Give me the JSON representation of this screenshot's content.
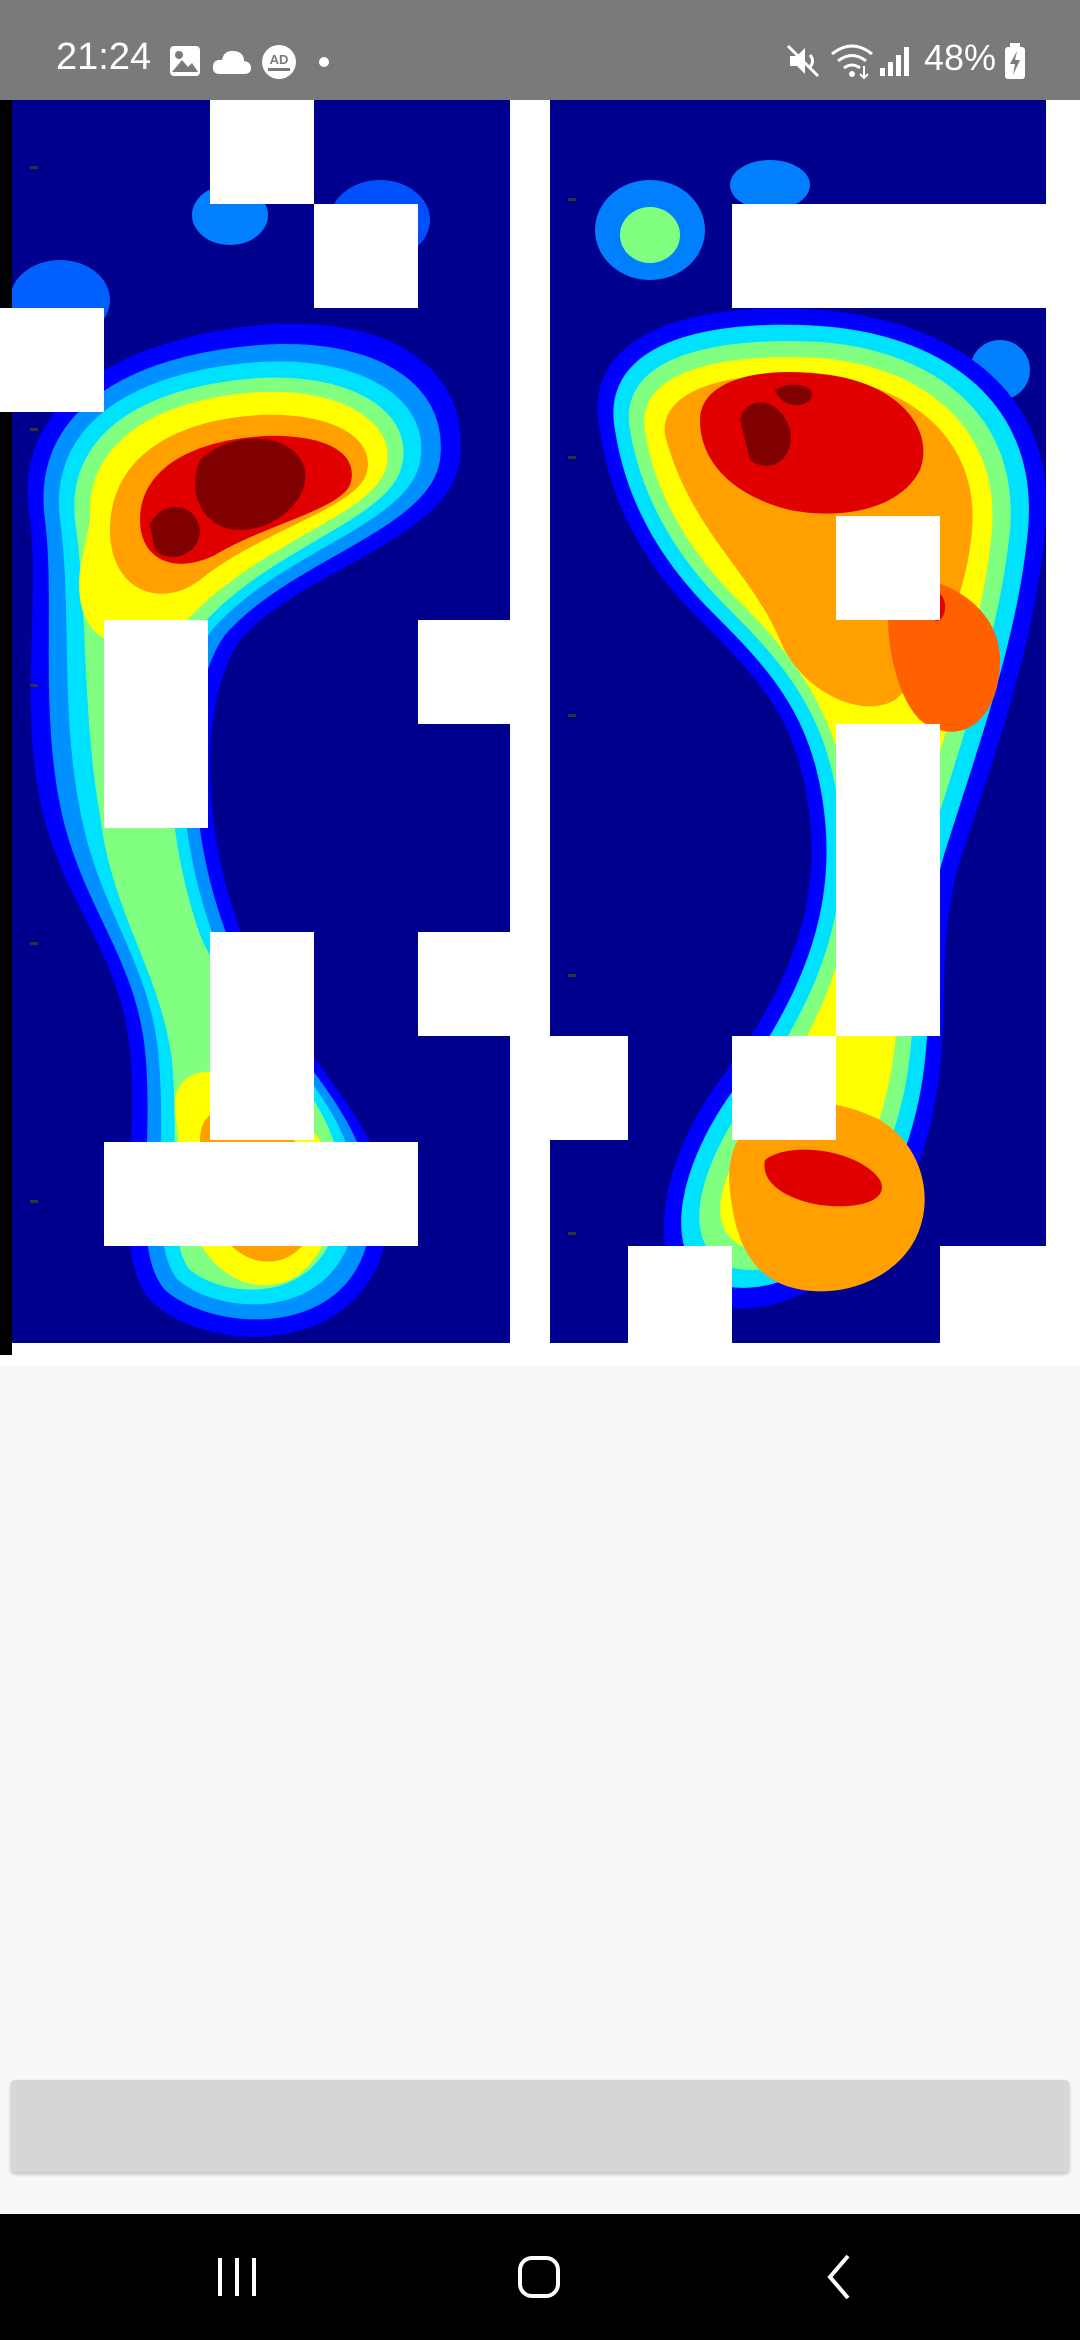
{
  "status_bar": {
    "time": "21:24",
    "battery": "48%",
    "left_icons": [
      "gallery-icon",
      "cloud-icon",
      "ad-blocker-icon",
      "dot-icon"
    ],
    "right_icons": [
      "mute-icon",
      "wifi-icon",
      "signal-icon",
      "battery-charging-icon"
    ],
    "ad_blocker_badge": "AD"
  },
  "foot_pressure_map": {
    "feet": [
      "left",
      "right"
    ],
    "background_color": "#00008f",
    "palette": [
      "#00008f",
      "#0000ff",
      "#0080ff",
      "#00e0ff",
      "#80ff80",
      "#ffff00",
      "#ffa000",
      "#ff6000",
      "#e00000",
      "#800000"
    ]
  },
  "bottom_button": {
    "label": ""
  },
  "nav_bar": {
    "buttons": [
      "recent-apps",
      "home",
      "back"
    ]
  }
}
